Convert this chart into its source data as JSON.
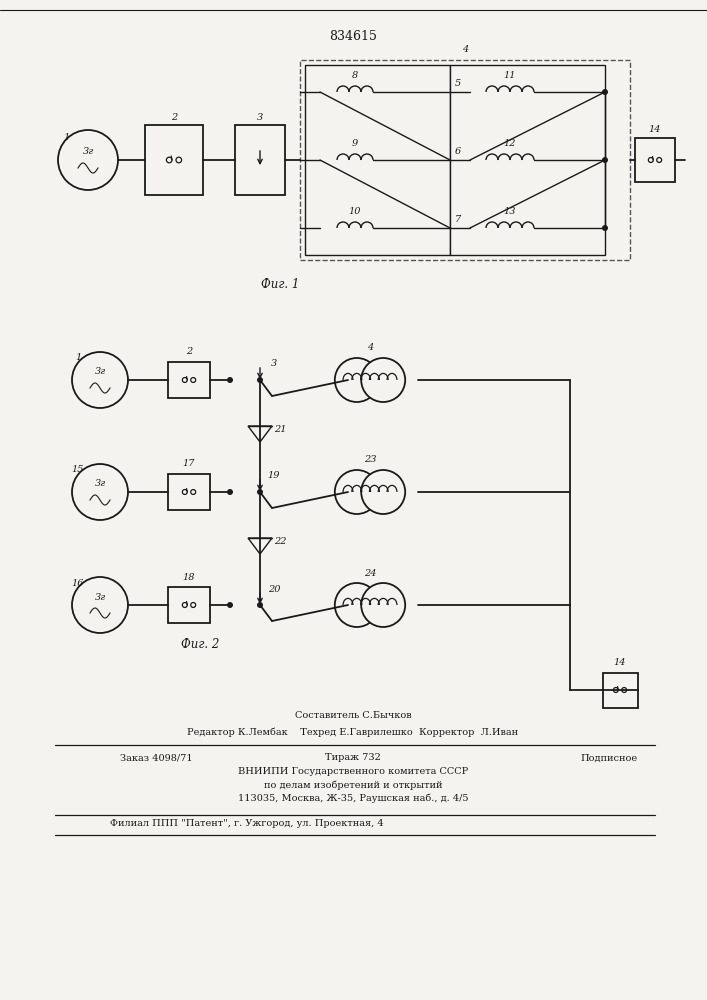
{
  "patent_number": "834615",
  "fig1_label": "Фиг. 1",
  "fig2_label": "Фиг. 2",
  "bg_color": "#f5f3ef",
  "line_color": "#1a1a1a",
  "footer_line1": "Составитель С.Бычков",
  "footer_line2": "Редактор К.Лембак    Техред Е.Гаврилешко  Корректор  Л.Иван",
  "footer_line3a": "Заказ 4098/71",
  "footer_line3b": "Тираж 732",
  "footer_line3c": "Подписное",
  "footer_line4": "ВНИИПИ Государственного комитета СССР",
  "footer_line5": "по делам изобретений и открытий",
  "footer_line6": "113035, Москва, Ж-35, Раушская наб., д. 4/5",
  "footer_line7": "Филиал ППП \"Патент\", г. Ужгород, ул. Проектная, 4"
}
